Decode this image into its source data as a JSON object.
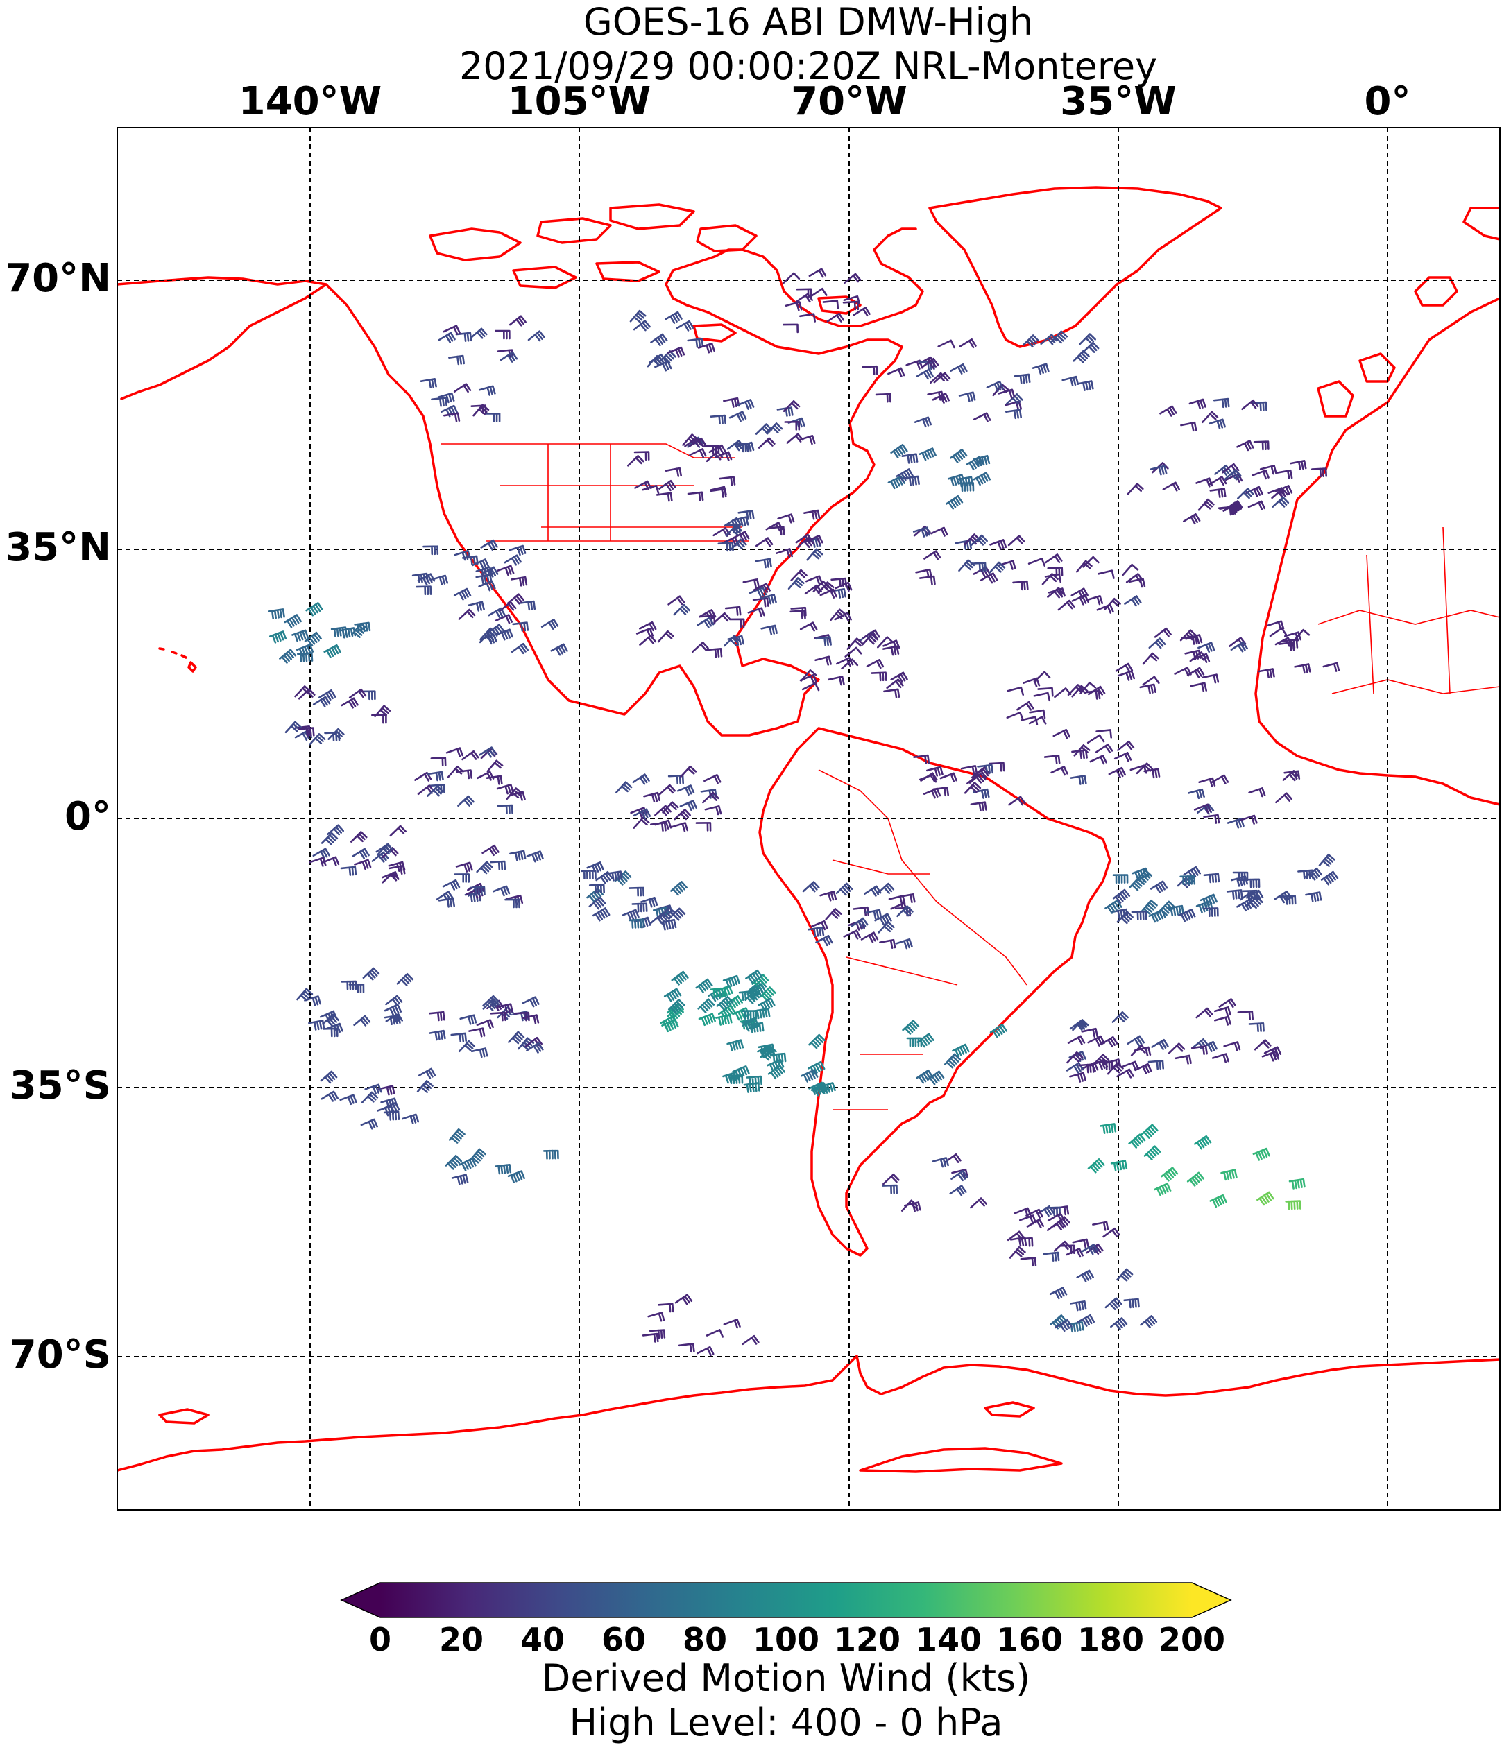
{
  "title": {
    "line1": "GOES-16 ABI DMW-High",
    "line2": "2021/09/29 00:00:20Z NRL-Monterey"
  },
  "map": {
    "lon_ticks": [
      "140°W",
      "105°W",
      "70°W",
      "35°W",
      "0°"
    ],
    "lat_ticks": [
      "70°N",
      "35°N",
      "0°",
      "35°S",
      "70°S"
    ],
    "grid": true,
    "boundary_color": "#ff0000",
    "projection": "equirectangular"
  },
  "colorbar": {
    "ticks": [
      "0",
      "20",
      "40",
      "60",
      "80",
      "100",
      "120",
      "140",
      "160",
      "180",
      "200"
    ],
    "label_line1": "Derived Motion Wind (kts)",
    "label_line2": "High Level: 400 - 0 hPa",
    "colormap": "viridis",
    "range": [
      0,
      200
    ],
    "extend": "both",
    "stops": [
      "#440154",
      "#482878",
      "#3e4a89",
      "#31688e",
      "#26828e",
      "#1f9e89",
      "#35b779",
      "#6ece58",
      "#b5de2b",
      "#fde725"
    ]
  },
  "wind_clusters": [
    {
      "lon": -118,
      "lat": 62,
      "speed": 30,
      "count": 10
    },
    {
      "lon": -95,
      "lat": 62,
      "speed": 40,
      "count": 12
    },
    {
      "lon": -120,
      "lat": 55,
      "speed": 35,
      "count": 10
    },
    {
      "lon": -73,
      "lat": 67,
      "speed": 20,
      "count": 14
    },
    {
      "lon": -62,
      "lat": 58,
      "speed": 25,
      "count": 12
    },
    {
      "lon": -82,
      "lat": 51,
      "speed": 35,
      "count": 16
    },
    {
      "lon": -56,
      "lat": 55,
      "speed": 30,
      "count": 12
    },
    {
      "lon": -42,
      "lat": 60,
      "speed": 45,
      "count": 10
    },
    {
      "lon": -23,
      "lat": 51,
      "speed": 35,
      "count": 10
    },
    {
      "lon": -60,
      "lat": 44,
      "speed": 60,
      "count": 14
    },
    {
      "lon": -92,
      "lat": 45,
      "speed": 25,
      "count": 20
    },
    {
      "lon": -82,
      "lat": 37,
      "speed": 30,
      "count": 22
    },
    {
      "lon": -27,
      "lat": 42,
      "speed": 25,
      "count": 14
    },
    {
      "lon": -15,
      "lat": 43,
      "speed": 30,
      "count": 16
    },
    {
      "lon": -40,
      "lat": 30,
      "speed": 25,
      "count": 20
    },
    {
      "lon": -55,
      "lat": 34,
      "speed": 30,
      "count": 18
    },
    {
      "lon": -120,
      "lat": 32,
      "speed": 40,
      "count": 18
    },
    {
      "lon": -140,
      "lat": 24,
      "speed": 70,
      "count": 14
    },
    {
      "lon": -115,
      "lat": 25,
      "speed": 35,
      "count": 16
    },
    {
      "lon": -78,
      "lat": 28,
      "speed": 30,
      "count": 22
    },
    {
      "lon": -70,
      "lat": 20,
      "speed": 25,
      "count": 22
    },
    {
      "lon": -92,
      "lat": 25,
      "speed": 30,
      "count": 16
    },
    {
      "lon": -30,
      "lat": 20,
      "speed": 25,
      "count": 18
    },
    {
      "lon": -15,
      "lat": 22,
      "speed": 25,
      "count": 12
    },
    {
      "lon": -45,
      "lat": 15,
      "speed": 20,
      "count": 16
    },
    {
      "lon": -137,
      "lat": 13,
      "speed": 30,
      "count": 16
    },
    {
      "lon": -120,
      "lat": 5,
      "speed": 30,
      "count": 20
    },
    {
      "lon": -95,
      "lat": 2,
      "speed": 30,
      "count": 22
    },
    {
      "lon": -55,
      "lat": 5,
      "speed": 25,
      "count": 18
    },
    {
      "lon": -38,
      "lat": 8,
      "speed": 25,
      "count": 16
    },
    {
      "lon": -20,
      "lat": 3,
      "speed": 30,
      "count": 12
    },
    {
      "lon": -135,
      "lat": -5,
      "speed": 35,
      "count": 18
    },
    {
      "lon": -118,
      "lat": -8,
      "speed": 40,
      "count": 18
    },
    {
      "lon": -98,
      "lat": -10,
      "speed": 50,
      "count": 22
    },
    {
      "lon": -70,
      "lat": -13,
      "speed": 35,
      "count": 24
    },
    {
      "lon": -30,
      "lat": -10,
      "speed": 55,
      "count": 22
    },
    {
      "lon": -15,
      "lat": -8,
      "speed": 45,
      "count": 16
    },
    {
      "lon": -88,
      "lat": -24,
      "speed": 95,
      "count": 34
    },
    {
      "lon": -80,
      "lat": -32,
      "speed": 85,
      "count": 18
    },
    {
      "lon": -118,
      "lat": -27,
      "speed": 35,
      "count": 22
    },
    {
      "lon": -135,
      "lat": -24,
      "speed": 40,
      "count": 16
    },
    {
      "lon": -132,
      "lat": -37,
      "speed": 40,
      "count": 14
    },
    {
      "lon": -116,
      "lat": -45,
      "speed": 60,
      "count": 8
    },
    {
      "lon": -37,
      "lat": -30,
      "speed": 30,
      "count": 26
    },
    {
      "lon": -22,
      "lat": -28,
      "speed": 30,
      "count": 16
    },
    {
      "lon": -57,
      "lat": -31,
      "speed": 80,
      "count": 8
    },
    {
      "lon": -36,
      "lat": -42,
      "speed": 110,
      "count": 5
    },
    {
      "lon": -26,
      "lat": -45,
      "speed": 125,
      "count": 6
    },
    {
      "lon": -18,
      "lat": -47,
      "speed": 150,
      "count": 5
    },
    {
      "lon": -43,
      "lat": -54,
      "speed": 30,
      "count": 24
    },
    {
      "lon": -38,
      "lat": -63,
      "speed": 50,
      "count": 12
    },
    {
      "lon": -90,
      "lat": -66,
      "speed": 25,
      "count": 10
    },
    {
      "lon": -60,
      "lat": -48,
      "speed": 30,
      "count": 10
    }
  ]
}
